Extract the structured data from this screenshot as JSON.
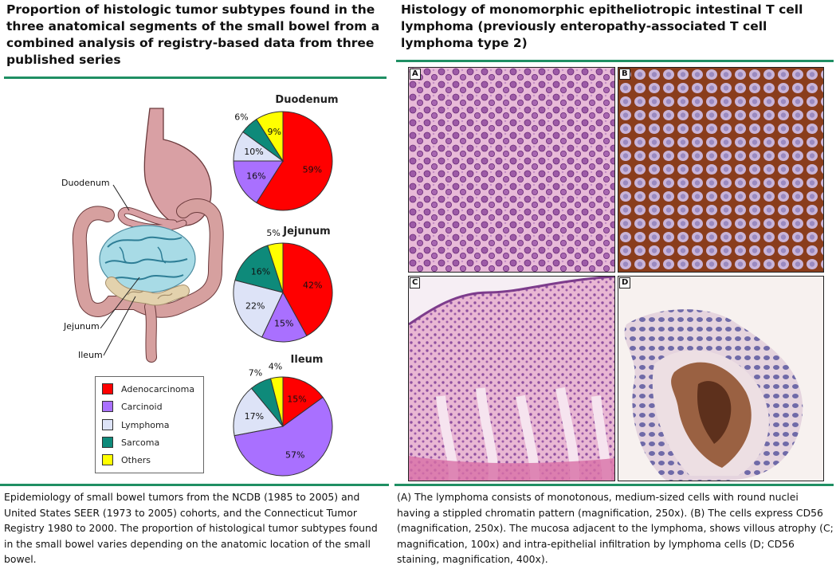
{
  "left_panel": {
    "title": "Proportion of histologic tumor subtypes found in the three anatomical segments of the small bowel from a combined analysis of registry-based data from three published series",
    "anatomy_labels": {
      "duodenum": "Duodenum",
      "jejunum": "Jejunum",
      "ileum": "Ileum"
    },
    "legend": [
      {
        "label": "Adenocarcinoma",
        "color": "#ff0000"
      },
      {
        "label": "Carcinoid",
        "color": "#a970ff"
      },
      {
        "label": "Lymphoma",
        "color": "#dde3f7"
      },
      {
        "label": "Sarcoma",
        "color": "#0e8a7a"
      },
      {
        "label": "Others",
        "color": "#ffff00"
      }
    ],
    "caption": "Epidemiology of small bowel tumors from the NCDB (1985 to 2005) and United States SEER (1973 to 2005) cohorts, and the Connecticut Tumor Registry 1980 to 2000. The proportion of histological tumor subtypes found in the small bowel varies depending on the anatomic location of the small bowel."
  },
  "chart_data": [
    {
      "type": "pie",
      "title": "Duodenum",
      "labels": [
        "Adenocarcinoma",
        "Carcinoid",
        "Lymphoma",
        "Sarcoma",
        "Others"
      ],
      "values": [
        59,
        16,
        10,
        6,
        9
      ],
      "value_labels": [
        "59%",
        "16%",
        "10%",
        "6%",
        "9%"
      ]
    },
    {
      "type": "pie",
      "title": "Jejunum",
      "labels": [
        "Adenocarcinoma",
        "Carcinoid",
        "Lymphoma",
        "Sarcoma",
        "Others"
      ],
      "values": [
        42,
        15,
        22,
        16,
        5
      ],
      "value_labels": [
        "42%",
        "15%",
        "22%",
        "16%",
        "5%"
      ]
    },
    {
      "type": "pie",
      "title": "Ileum",
      "labels": [
        "Adenocarcinoma",
        "Carcinoid",
        "Lymphoma",
        "Sarcoma",
        "Others"
      ],
      "values": [
        15,
        57,
        17,
        7,
        4
      ],
      "value_labels": [
        "15%",
        "57%",
        "17%",
        "7%",
        "4%"
      ]
    }
  ],
  "right_panel": {
    "title": "Histology of monomorphic epitheliotropic intestinal T cell lymphoma (previously enteropathy-associated T cell lymphoma type 2)",
    "images": [
      {
        "label": "A"
      },
      {
        "label": "B"
      },
      {
        "label": "C"
      },
      {
        "label": "D"
      }
    ],
    "caption": "(A) The lymphoma consists of monotonous, medium-sized cells with round nuclei having a stippled chromatin pattern (magnification, 250x). (B) The cells express CD56 (magnification, 250x). The mucosa adjacent to the lymphoma, shows villous atrophy (C; magnification, 100x) and intra-epithelial infiltration by lymphoma cells (D; CD56 staining, magnification, 400x)."
  }
}
